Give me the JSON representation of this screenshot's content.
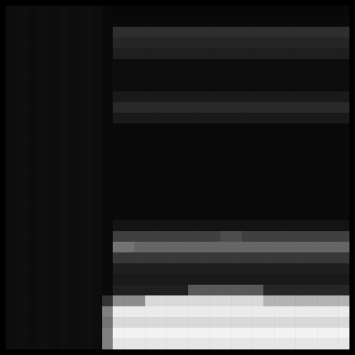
{
  "chart_data": {
    "type": "heatmap",
    "tick_labels": false,
    "clim": [
      0,
      100
    ],
    "cells": [
      [
        5,
        6,
        5,
        6,
        5,
        6,
        5,
        6,
        5,
        4,
        3,
        3,
        3,
        3,
        3,
        3,
        3,
        3,
        3,
        3,
        3,
        3,
        3,
        3,
        3,
        3,
        3,
        3,
        3,
        3,
        3,
        3
      ],
      [
        5,
        6,
        5,
        6,
        5,
        6,
        5,
        6,
        5,
        4,
        4,
        4,
        4,
        4,
        4,
        4,
        4,
        4,
        4,
        4,
        4,
        4,
        4,
        4,
        4,
        4,
        4,
        4,
        4,
        4,
        4,
        4
      ],
      [
        5,
        6,
        5,
        6,
        5,
        6,
        5,
        6,
        5,
        4,
        18,
        18,
        18,
        18,
        18,
        18,
        18,
        18,
        18,
        18,
        18,
        18,
        18,
        18,
        18,
        18,
        18,
        18,
        18,
        18,
        18,
        18
      ],
      [
        5,
        6,
        5,
        6,
        5,
        6,
        5,
        6,
        5,
        4,
        15,
        15,
        15,
        15,
        15,
        15,
        15,
        15,
        15,
        15,
        15,
        15,
        15,
        15,
        15,
        15,
        15,
        15,
        15,
        15,
        15,
        15
      ],
      [
        5,
        6,
        5,
        6,
        5,
        6,
        5,
        6,
        5,
        4,
        12,
        12,
        12,
        12,
        12,
        12,
        12,
        12,
        12,
        12,
        12,
        12,
        12,
        12,
        12,
        12,
        12,
        12,
        12,
        12,
        12,
        12
      ],
      [
        5,
        6,
        5,
        6,
        5,
        6,
        5,
        6,
        5,
        4,
        5,
        5,
        5,
        5,
        5,
        5,
        5,
        5,
        5,
        5,
        5,
        5,
        5,
        5,
        5,
        5,
        5,
        5,
        5,
        5,
        5,
        5
      ],
      [
        5,
        6,
        5,
        6,
        5,
        6,
        5,
        6,
        5,
        4,
        5,
        5,
        5,
        5,
        5,
        5,
        5,
        5,
        5,
        5,
        5,
        5,
        5,
        5,
        5,
        5,
        5,
        5,
        5,
        5,
        5,
        5
      ],
      [
        5,
        6,
        5,
        6,
        5,
        6,
        5,
        6,
        5,
        4,
        5,
        5,
        5,
        5,
        5,
        5,
        5,
        5,
        5,
        5,
        5,
        5,
        5,
        5,
        5,
        5,
        5,
        5,
        5,
        5,
        5,
        5
      ],
      [
        5,
        6,
        5,
        6,
        5,
        6,
        5,
        6,
        5,
        4,
        10,
        10,
        10,
        10,
        10,
        10,
        10,
        10,
        10,
        10,
        10,
        10,
        10,
        10,
        10,
        10,
        10,
        10,
        10,
        10,
        10,
        10
      ],
      [
        5,
        6,
        5,
        6,
        5,
        6,
        5,
        6,
        5,
        4,
        16,
        16,
        16,
        16,
        16,
        16,
        16,
        16,
        16,
        16,
        16,
        16,
        16,
        16,
        16,
        16,
        16,
        16,
        16,
        16,
        16,
        16
      ],
      [
        5,
        6,
        5,
        6,
        5,
        6,
        5,
        6,
        5,
        4,
        10,
        10,
        10,
        10,
        10,
        10,
        10,
        10,
        10,
        10,
        10,
        10,
        10,
        10,
        10,
        10,
        10,
        10,
        10,
        10,
        10,
        10
      ],
      [
        5,
        6,
        5,
        6,
        5,
        6,
        5,
        6,
        5,
        4,
        4,
        4,
        4,
        4,
        4,
        4,
        4,
        4,
        4,
        4,
        4,
        4,
        4,
        4,
        4,
        4,
        4,
        4,
        4,
        4,
        4,
        4
      ],
      [
        5,
        6,
        5,
        6,
        5,
        6,
        5,
        6,
        5,
        4,
        4,
        4,
        4,
        4,
        4,
        4,
        4,
        4,
        4,
        4,
        4,
        4,
        4,
        4,
        4,
        4,
        4,
        4,
        4,
        4,
        4,
        4
      ],
      [
        5,
        6,
        5,
        6,
        5,
        6,
        5,
        6,
        5,
        4,
        4,
        4,
        4,
        4,
        4,
        4,
        4,
        4,
        4,
        4,
        4,
        4,
        4,
        4,
        4,
        4,
        4,
        4,
        4,
        4,
        4,
        4
      ],
      [
        5,
        6,
        5,
        6,
        5,
        6,
        5,
        6,
        5,
        4,
        4,
        4,
        4,
        4,
        4,
        4,
        4,
        4,
        4,
        4,
        4,
        4,
        4,
        4,
        4,
        4,
        4,
        4,
        4,
        4,
        4,
        4
      ],
      [
        5,
        6,
        5,
        6,
        5,
        6,
        5,
        6,
        5,
        4,
        4,
        4,
        4,
        4,
        4,
        4,
        4,
        4,
        4,
        4,
        4,
        4,
        4,
        4,
        4,
        4,
        4,
        4,
        4,
        4,
        4,
        4
      ],
      [
        5,
        6,
        5,
        6,
        5,
        6,
        5,
        6,
        5,
        4,
        4,
        4,
        4,
        4,
        4,
        4,
        4,
        4,
        4,
        4,
        4,
        4,
        4,
        4,
        4,
        4,
        4,
        4,
        4,
        4,
        4,
        4
      ],
      [
        5,
        6,
        5,
        6,
        5,
        6,
        5,
        6,
        5,
        4,
        4,
        4,
        4,
        4,
        4,
        4,
        4,
        4,
        4,
        4,
        4,
        4,
        4,
        4,
        4,
        4,
        4,
        4,
        4,
        4,
        4,
        4
      ],
      [
        5,
        6,
        5,
        6,
        5,
        6,
        5,
        6,
        5,
        4,
        4,
        4,
        4,
        4,
        4,
        4,
        4,
        4,
        4,
        4,
        4,
        4,
        4,
        4,
        4,
        4,
        4,
        4,
        4,
        4,
        4,
        4
      ],
      [
        5,
        6,
        5,
        6,
        5,
        6,
        5,
        6,
        5,
        4,
        4,
        4,
        4,
        4,
        4,
        4,
        4,
        4,
        4,
        4,
        4,
        4,
        4,
        4,
        4,
        4,
        4,
        4,
        4,
        4,
        4,
        4
      ],
      [
        5,
        6,
        5,
        6,
        5,
        6,
        5,
        6,
        5,
        4,
        8,
        8,
        8,
        8,
        8,
        8,
        8,
        8,
        8,
        8,
        8,
        8,
        8,
        8,
        8,
        8,
        8,
        8,
        8,
        8,
        8,
        8
      ],
      [
        5,
        6,
        5,
        6,
        5,
        6,
        5,
        6,
        5,
        4,
        25,
        25,
        25,
        25,
        25,
        25,
        25,
        25,
        25,
        25,
        30,
        30,
        25,
        25,
        25,
        25,
        25,
        25,
        25,
        25,
        25,
        25
      ],
      [
        5,
        6,
        5,
        6,
        5,
        6,
        5,
        6,
        5,
        4,
        45,
        45,
        40,
        40,
        40,
        40,
        40,
        40,
        40,
        40,
        40,
        40,
        40,
        40,
        40,
        40,
        40,
        40,
        40,
        40,
        40,
        40
      ],
      [
        5,
        6,
        5,
        6,
        5,
        6,
        5,
        6,
        5,
        4,
        22,
        22,
        22,
        22,
        22,
        22,
        22,
        22,
        22,
        22,
        22,
        22,
        22,
        22,
        22,
        22,
        22,
        22,
        22,
        22,
        22,
        22
      ],
      [
        5,
        6,
        5,
        6,
        5,
        6,
        5,
        6,
        5,
        4,
        12,
        12,
        12,
        12,
        12,
        12,
        12,
        12,
        12,
        12,
        12,
        12,
        12,
        12,
        12,
        12,
        12,
        12,
        12,
        12,
        12,
        12
      ],
      [
        5,
        6,
        5,
        6,
        5,
        6,
        5,
        6,
        5,
        4,
        10,
        10,
        10,
        10,
        10,
        10,
        10,
        10,
        10,
        10,
        10,
        10,
        10,
        10,
        10,
        10,
        10,
        10,
        10,
        10,
        10,
        10
      ],
      [
        5,
        6,
        5,
        6,
        5,
        6,
        5,
        6,
        5,
        4,
        12,
        12,
        12,
        12,
        12,
        12,
        12,
        35,
        35,
        35,
        35,
        35,
        35,
        35,
        15,
        15,
        15,
        15,
        15,
        15,
        15,
        15
      ],
      [
        5,
        6,
        5,
        6,
        5,
        6,
        5,
        6,
        5,
        20,
        55,
        55,
        55,
        85,
        85,
        85,
        85,
        85,
        85,
        85,
        85,
        85,
        85,
        85,
        70,
        70,
        70,
        70,
        70,
        70,
        70,
        70
      ],
      [
        5,
        6,
        5,
        6,
        5,
        6,
        5,
        6,
        5,
        50,
        92,
        92,
        92,
        92,
        92,
        92,
        92,
        92,
        92,
        92,
        92,
        92,
        92,
        92,
        92,
        92,
        92,
        92,
        92,
        92,
        92,
        92
      ],
      [
        5,
        6,
        5,
        6,
        5,
        6,
        5,
        6,
        5,
        45,
        85,
        85,
        85,
        85,
        85,
        85,
        85,
        85,
        85,
        85,
        85,
        85,
        85,
        85,
        85,
        85,
        85,
        85,
        85,
        85,
        85,
        85
      ],
      [
        5,
        6,
        5,
        6,
        5,
        6,
        5,
        6,
        5,
        50,
        95,
        95,
        95,
        95,
        95,
        95,
        95,
        95,
        95,
        95,
        95,
        95,
        95,
        95,
        95,
        95,
        95,
        95,
        95,
        95,
        95,
        95
      ],
      [
        5,
        6,
        5,
        6,
        5,
        6,
        5,
        6,
        5,
        50,
        90,
        90,
        90,
        90,
        90,
        90,
        90,
        90,
        90,
        90,
        90,
        90,
        90,
        90,
        90,
        90,
        90,
        90,
        90,
        90,
        90,
        90
      ]
    ]
  }
}
